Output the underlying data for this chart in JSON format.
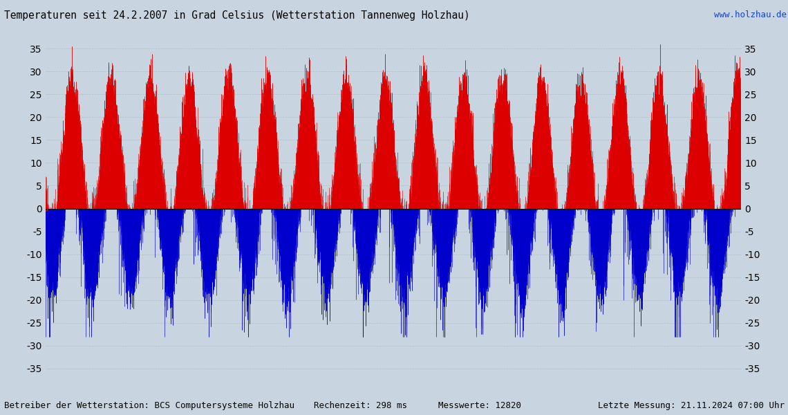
{
  "title": "Temperaturen seit 24.2.2007 in Grad Celsius (Wetterstation Tannenweg Holzhau)",
  "url_text": "www.holzhau.de",
  "footer_left": "Betreiber der Wetterstation: BCS Computersysteme Holzhau",
  "footer_mid": "Rechenzeit: 298 ms      Messwerte: 12820",
  "footer_right": "Letzte Messung: 21.11.2024 07:00 Uhr",
  "background_color": "#c8d4df",
  "grid_color": "#b0bfcc",
  "line_color_red": "#dd0000",
  "line_color_blue": "#0000cc",
  "zero_line_color": "#000000",
  "title_fontsize": 10.5,
  "footer_fontsize": 9,
  "url_fontsize": 9,
  "tick_fontsize": 10,
  "ylim": [
    -37,
    37
  ],
  "yticks": [
    -35,
    -30,
    -25,
    -20,
    -15,
    -10,
    -5,
    0,
    5,
    10,
    15,
    20,
    25,
    30,
    35
  ],
  "n_years": 17.75,
  "n_points": 12820
}
